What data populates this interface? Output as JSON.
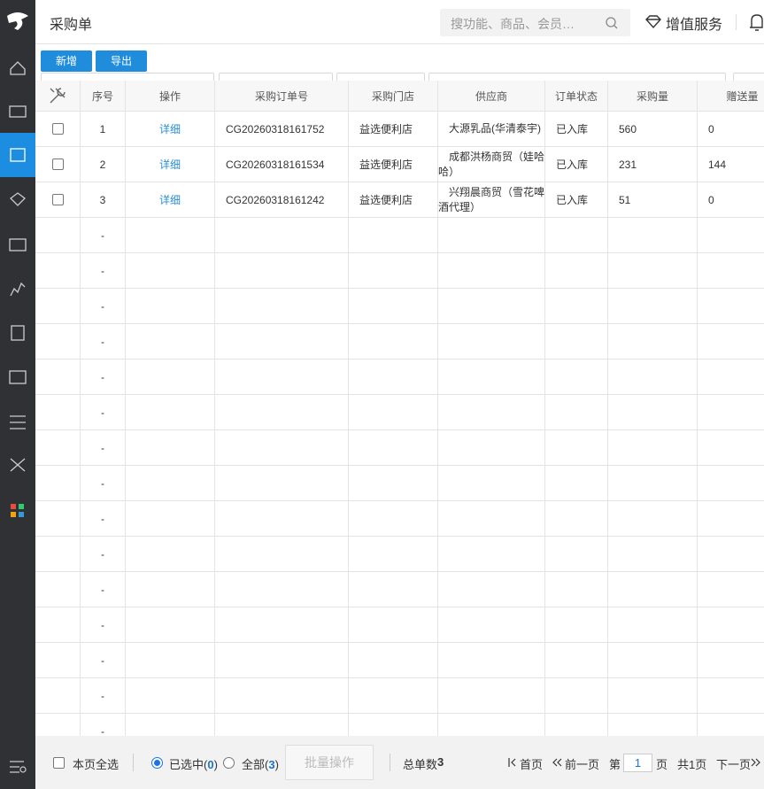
{
  "app": {
    "title": "采购单",
    "search_placeholder": "搜功能、商品、会员…",
    "value_added": "增值服务"
  },
  "toolbar": {
    "buttons": [
      "新增",
      "导出"
    ]
  },
  "table": {
    "columns": [
      "序号",
      "操作",
      "采购订单号",
      "采购门店",
      "供应商",
      "订单状态",
      "采购量",
      "赠送量"
    ],
    "rows": [
      [
        "1",
        "详细",
        "CG20260318161752",
        "益选便利店",
        "大源乳品(华清泰宇)",
        "已入库",
        "560",
        "0"
      ],
      [
        "2",
        "详细",
        "CG20260318161534",
        "益选便利店",
        "成都洪杨商贸（娃哈哈）",
        "已入库",
        "231",
        "144"
      ],
      [
        "3",
        "详细",
        "CG20260318161242",
        "益选便利店",
        "兴翔晨商贸（雪花啤酒代理）",
        "已入库",
        "51",
        "0"
      ]
    ],
    "empty_rows": [
      "-",
      "-",
      "-",
      "-",
      "-",
      "-",
      "-",
      "-",
      "-",
      "-",
      "-",
      "-",
      "-",
      "-",
      "-"
    ]
  },
  "footer": {
    "select_page": "本页全选",
    "selected": {
      "prefix": "已选中(",
      "count": "0",
      "suffix": ")"
    },
    "all": {
      "prefix": "全部(",
      "count": "3",
      "suffix": ")"
    },
    "batch": "批量操作",
    "total_label": "总单数",
    "total": "3",
    "first": "首页",
    "prev": "前一页",
    "page_prefix": "第",
    "page": "1",
    "page_suffix": "页",
    "total_pages": "共1页",
    "next": "下一页"
  }
}
